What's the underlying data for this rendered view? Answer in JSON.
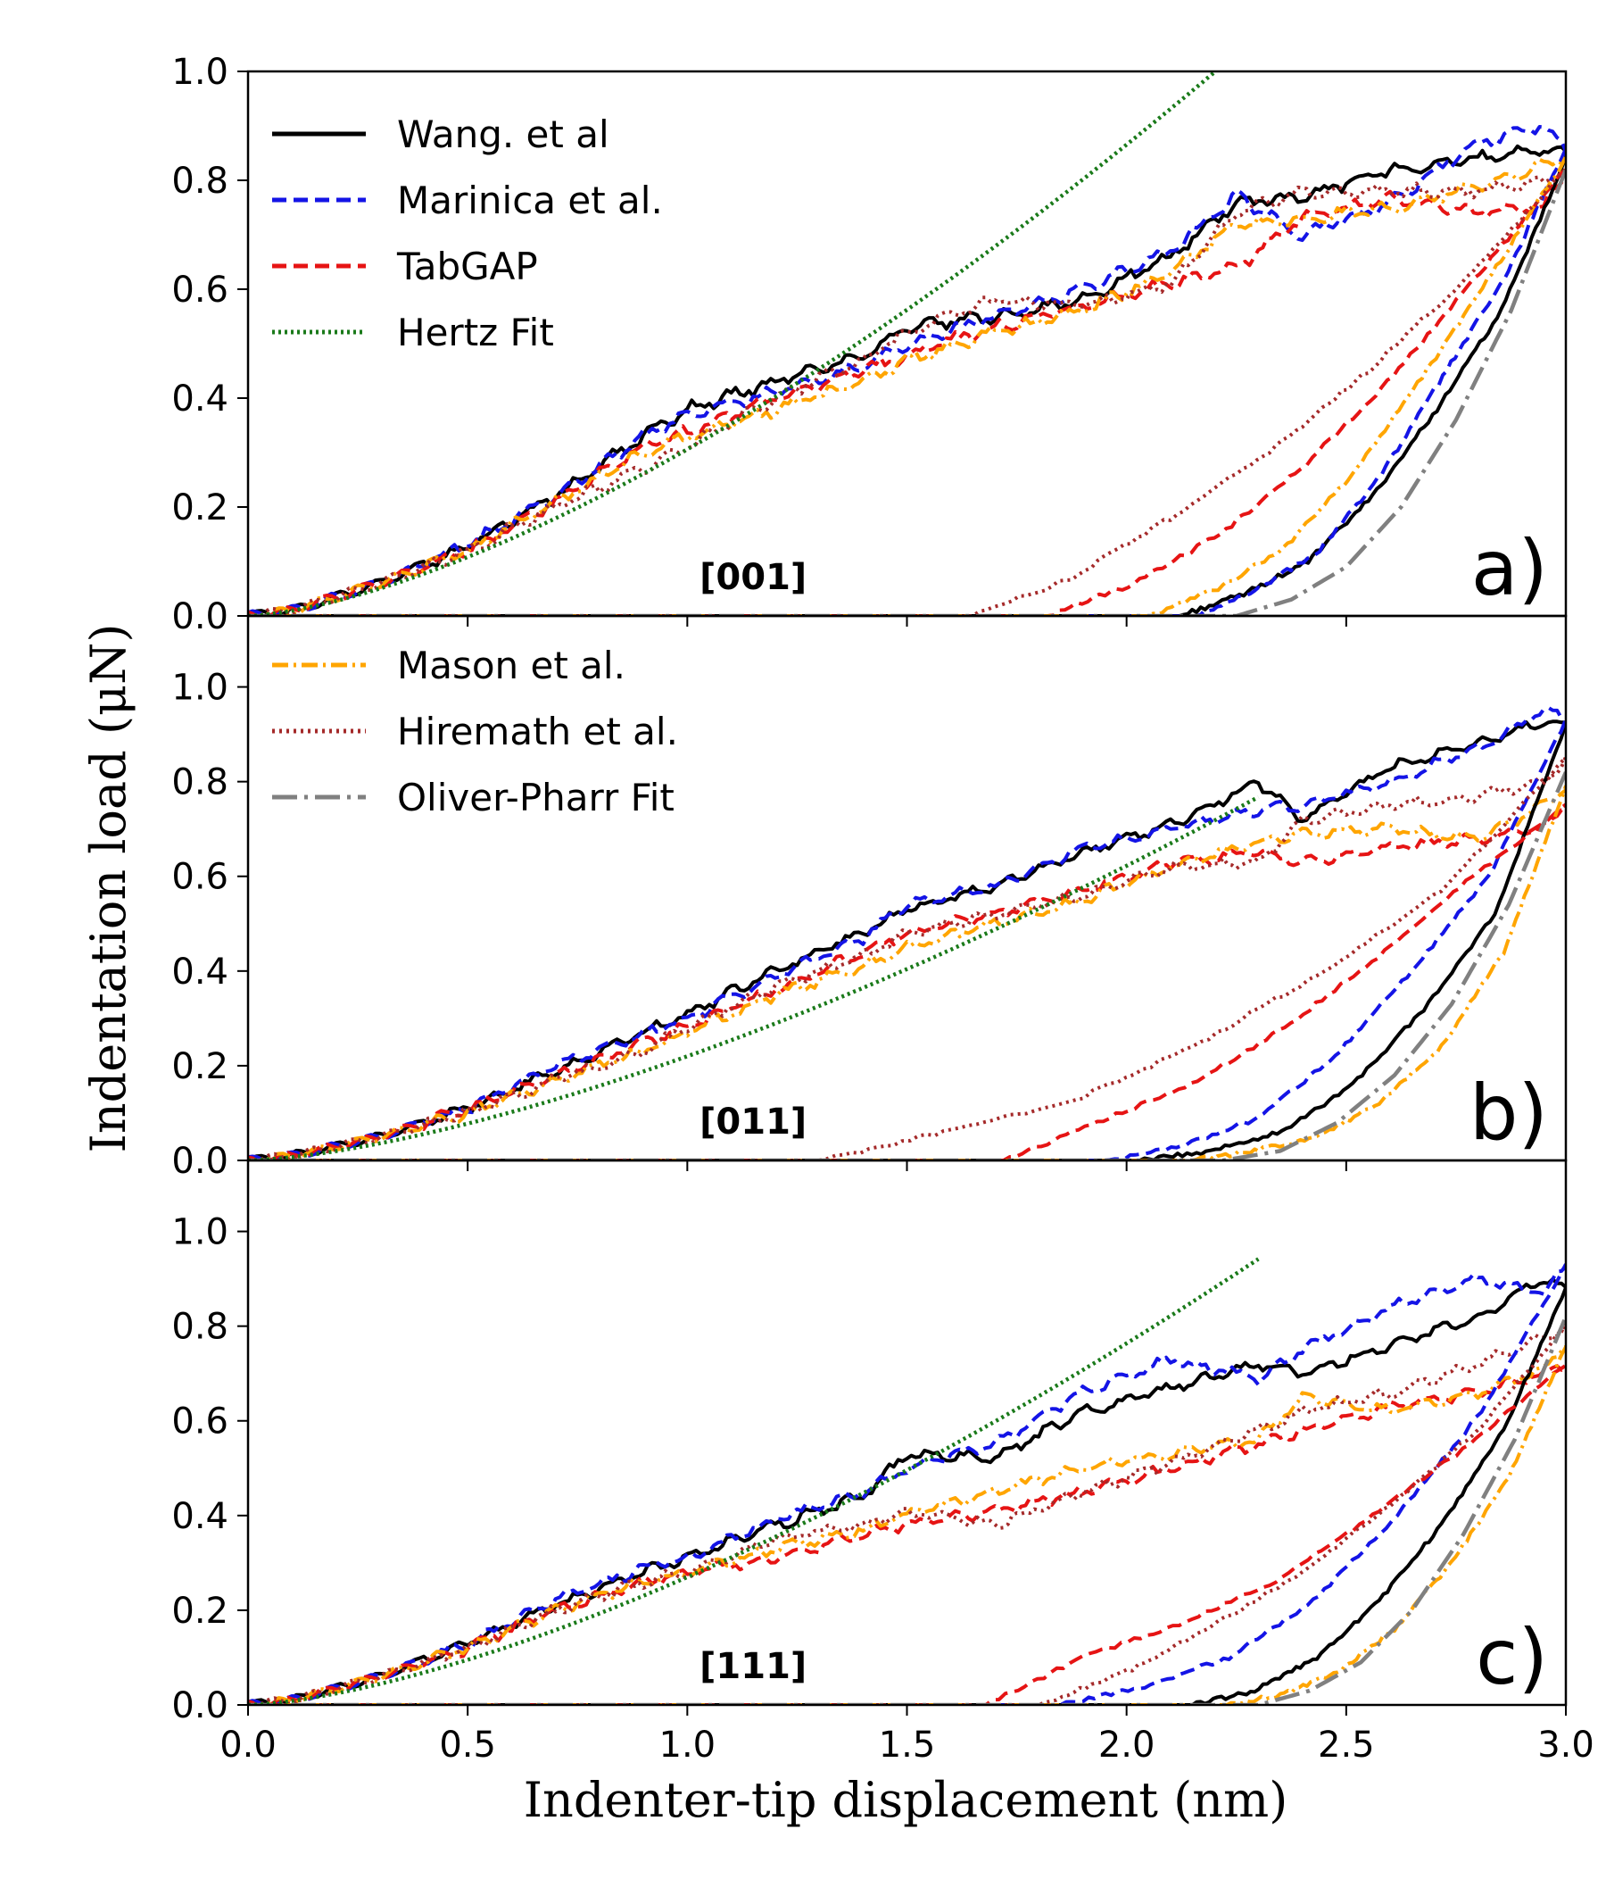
{
  "chart_data": {
    "type": "line",
    "xlabel": "Indenter-tip displacement (nm)",
    "ylabel": "Indentation load (μN)",
    "xlim": [
      0.0,
      3.0
    ],
    "ylim": [
      0.0,
      1.0
    ],
    "ylim_upper_panels": [
      0.0,
      1.15
    ],
    "x_ticks": [
      "0.0",
      "0.5",
      "1.0",
      "1.5",
      "2.0",
      "2.5",
      "3.0"
    ],
    "y_ticks_top": [
      "0.0",
      "0.2",
      "0.4",
      "0.6",
      "0.8",
      "1.0"
    ],
    "y_ticks": [
      "0.0",
      "0.2",
      "0.4",
      "0.6",
      "0.8",
      "1.0"
    ],
    "legends": [
      {
        "panel": "a",
        "placement": "upper-left",
        "entries": [
          {
            "label": "Wang. et al",
            "color": "#000000",
            "style": "solid"
          },
          {
            "label": "Marinica et al.",
            "color": "#1414e6",
            "style": "dashed"
          },
          {
            "label": "TabGAP",
            "color": "#e61414",
            "style": "dashed"
          },
          {
            "label": "Hertz Fit",
            "color": "#1a7a1a",
            "style": "dotted"
          }
        ]
      },
      {
        "panel": "b",
        "placement": "upper-left",
        "entries": [
          {
            "label": "Mason et al.",
            "color": "#ffa500",
            "style": "dashdot"
          },
          {
            "label": "Hiremath et al.",
            "color": "#a52a2a",
            "style": "dotted"
          },
          {
            "label": "Oliver-Pharr Fit",
            "color": "#808080",
            "style": "longdashdot"
          }
        ]
      }
    ],
    "panels": [
      {
        "id": "a",
        "label": "a)",
        "orientation": "[001]",
        "hertz_k": 0.306,
        "loading": {
          "x": [
            0.0,
            0.1,
            0.3,
            0.5,
            0.7,
            0.9,
            1.0,
            1.2,
            1.4,
            1.5,
            1.7,
            1.9,
            2.1,
            2.25,
            2.4,
            2.6,
            2.8,
            2.95,
            3.0
          ],
          "series": [
            {
              "name": "Wang. et al",
              "values": [
                0.0,
                0.01,
                0.06,
                0.13,
                0.22,
                0.33,
                0.38,
                0.43,
                0.48,
                0.53,
                0.55,
                0.58,
                0.66,
                0.76,
                0.77,
                0.82,
                0.84,
                0.86,
                0.85
              ]
            },
            {
              "name": "Marinica et al.",
              "values": [
                0.0,
                0.01,
                0.06,
                0.13,
                0.22,
                0.33,
                0.37,
                0.41,
                0.46,
                0.5,
                0.55,
                0.6,
                0.67,
                0.77,
                0.7,
                0.76,
                0.87,
                0.9,
                0.86
              ]
            },
            {
              "name": "TabGAP",
              "values": [
                0.0,
                0.01,
                0.06,
                0.12,
                0.21,
                0.31,
                0.34,
                0.4,
                0.45,
                0.48,
                0.53,
                0.57,
                0.61,
                0.64,
                0.73,
                0.77,
                0.74,
                0.75,
                0.82
              ]
            },
            {
              "name": "Mason et al.",
              "values": [
                0.0,
                0.01,
                0.06,
                0.12,
                0.21,
                0.3,
                0.33,
                0.38,
                0.43,
                0.47,
                0.52,
                0.56,
                0.63,
                0.72,
                0.73,
                0.75,
                0.79,
                0.83,
                0.84
              ]
            },
            {
              "name": "Hiremath et al.",
              "values": [
                0.0,
                0.01,
                0.06,
                0.12,
                0.2,
                0.27,
                0.31,
                0.4,
                0.47,
                0.52,
                0.58,
                0.57,
                0.61,
                0.74,
                0.78,
                0.78,
                0.78,
                0.8,
                0.82
              ]
            }
          ]
        },
        "unloading": [
          {
            "name": "Wang. et al",
            "x0": 2.12,
            "values": [
              0.0,
              0.04,
              0.1,
              0.22,
              0.38,
              0.56,
              0.84
            ]
          },
          {
            "name": "Marinica et al.",
            "x0": 2.16,
            "values": [
              0.0,
              0.05,
              0.12,
              0.26,
              0.44,
              0.62,
              0.86
            ]
          },
          {
            "name": "TabGAP",
            "x0": 1.82,
            "values": [
              0.0,
              0.06,
              0.15,
              0.28,
              0.44,
              0.63,
              0.82
            ]
          },
          {
            "name": "Mason et al.",
            "x0": 2.05,
            "values": [
              0.0,
              0.05,
              0.13,
              0.27,
              0.45,
              0.64,
              0.84
            ]
          },
          {
            "name": "Hiremath et al.",
            "x0": 1.65,
            "values": [
              0.0,
              0.07,
              0.18,
              0.3,
              0.45,
              0.62,
              0.82
            ]
          },
          {
            "name": "Oliver-Pharr Fit",
            "x0": 2.25,
            "values": [
              0.0,
              0.03,
              0.09,
              0.2,
              0.36,
              0.56,
              0.82
            ]
          }
        ]
      },
      {
        "id": "b",
        "label": "b)",
        "orientation": "[011]",
        "hertz_k": 0.22,
        "loading": {
          "x": [
            0.0,
            0.1,
            0.3,
            0.5,
            0.7,
            0.9,
            1.0,
            1.2,
            1.4,
            1.5,
            1.7,
            1.9,
            2.1,
            2.3,
            2.4,
            2.6,
            2.8,
            2.95,
            3.0
          ],
          "series": [
            {
              "name": "Wang. et al",
              "values": [
                0.0,
                0.01,
                0.05,
                0.11,
                0.19,
                0.27,
                0.31,
                0.4,
                0.48,
                0.53,
                0.58,
                0.65,
                0.71,
                0.8,
                0.72,
                0.83,
                0.88,
                0.93,
                0.92
              ]
            },
            {
              "name": "Marinica et al.",
              "values": [
                0.0,
                0.01,
                0.05,
                0.11,
                0.2,
                0.27,
                0.3,
                0.39,
                0.47,
                0.54,
                0.58,
                0.66,
                0.7,
                0.74,
                0.75,
                0.8,
                0.87,
                0.95,
                0.93
              ]
            },
            {
              "name": "TabGAP",
              "values": [
                0.0,
                0.01,
                0.05,
                0.11,
                0.18,
                0.25,
                0.28,
                0.36,
                0.44,
                0.48,
                0.52,
                0.57,
                0.63,
                0.65,
                0.63,
                0.66,
                0.68,
                0.7,
                0.75
              ]
            },
            {
              "name": "Mason et al.",
              "values": [
                0.0,
                0.01,
                0.05,
                0.1,
                0.17,
                0.23,
                0.27,
                0.35,
                0.41,
                0.45,
                0.5,
                0.55,
                0.62,
                0.67,
                0.69,
                0.7,
                0.68,
                0.75,
                0.79
              ]
            },
            {
              "name": "Hiremath et al.",
              "values": [
                0.0,
                0.01,
                0.05,
                0.1,
                0.17,
                0.23,
                0.28,
                0.37,
                0.43,
                0.48,
                0.52,
                0.56,
                0.62,
                0.63,
                0.72,
                0.75,
                0.77,
                0.8,
                0.85
              ]
            }
          ]
        },
        "unloading": [
          {
            "name": "Wang. et al",
            "x0": 2.03,
            "values": [
              0.0,
              0.02,
              0.06,
              0.16,
              0.32,
              0.52,
              0.92
            ]
          },
          {
            "name": "Marinica et al.",
            "x0": 1.95,
            "values": [
              0.0,
              0.03,
              0.09,
              0.22,
              0.4,
              0.6,
              0.93
            ]
          },
          {
            "name": "TabGAP",
            "x0": 1.72,
            "values": [
              0.0,
              0.08,
              0.16,
              0.28,
              0.43,
              0.6,
              0.75
            ]
          },
          {
            "name": "Mason et al.",
            "x0": 2.15,
            "values": [
              0.0,
              0.02,
              0.05,
              0.12,
              0.24,
              0.44,
              0.79
            ]
          },
          {
            "name": "Hiremath et al.",
            "x0": 1.3,
            "values": [
              0.0,
              0.06,
              0.12,
              0.24,
              0.39,
              0.57,
              0.85
            ]
          },
          {
            "name": "Oliver-Pharr Fit",
            "x0": 2.22,
            "values": [
              0.0,
              0.02,
              0.08,
              0.18,
              0.33,
              0.54,
              0.82
            ]
          }
        ]
      },
      {
        "id": "c",
        "label": "c)",
        "orientation": "[111]",
        "hertz_k": 0.27,
        "loading": {
          "x": [
            0.0,
            0.1,
            0.3,
            0.5,
            0.7,
            0.9,
            1.0,
            1.2,
            1.4,
            1.5,
            1.7,
            1.9,
            2.1,
            2.3,
            2.4,
            2.6,
            2.8,
            2.95,
            3.0
          ],
          "series": [
            {
              "name": "Wang. et al",
              "values": [
                0.0,
                0.01,
                0.06,
                0.13,
                0.21,
                0.28,
                0.31,
                0.38,
                0.44,
                0.53,
                0.52,
                0.62,
                0.67,
                0.72,
                0.7,
                0.76,
                0.82,
                0.9,
                0.88
              ]
            },
            {
              "name": "Marinica et al.",
              "values": [
                0.0,
                0.01,
                0.06,
                0.13,
                0.22,
                0.29,
                0.31,
                0.39,
                0.45,
                0.5,
                0.55,
                0.66,
                0.73,
                0.69,
                0.75,
                0.84,
                0.9,
                0.87,
                0.93
              ]
            },
            {
              "name": "TabGAP",
              "values": [
                0.0,
                0.01,
                0.06,
                0.12,
                0.2,
                0.26,
                0.28,
                0.31,
                0.36,
                0.38,
                0.41,
                0.45,
                0.5,
                0.55,
                0.58,
                0.63,
                0.66,
                0.7,
                0.72
              ]
            },
            {
              "name": "Mason et al.",
              "values": [
                0.0,
                0.01,
                0.06,
                0.12,
                0.2,
                0.26,
                0.28,
                0.33,
                0.37,
                0.4,
                0.45,
                0.5,
                0.53,
                0.56,
                0.65,
                0.62,
                0.66,
                0.71,
                0.76
              ]
            },
            {
              "name": "Hiremath et al.",
              "values": [
                0.0,
                0.01,
                0.06,
                0.12,
                0.2,
                0.26,
                0.28,
                0.35,
                0.38,
                0.41,
                0.38,
                0.45,
                0.51,
                0.58,
                0.62,
                0.66,
                0.72,
                0.78,
                0.8
              ]
            }
          ]
        },
        "unloading": [
          {
            "name": "Wang. et al",
            "x0": 2.15,
            "values": [
              0.0,
              0.03,
              0.1,
              0.22,
              0.38,
              0.58,
              0.88
            ]
          },
          {
            "name": "Marinica et al.",
            "x0": 1.85,
            "values": [
              0.0,
              0.04,
              0.1,
              0.22,
              0.4,
              0.62,
              0.93
            ]
          },
          {
            "name": "TabGAP",
            "x0": 1.68,
            "values": [
              0.0,
              0.1,
              0.17,
              0.26,
              0.4,
              0.55,
              0.72
            ]
          },
          {
            "name": "Mason et al.",
            "x0": 2.22,
            "values": [
              0.0,
              0.02,
              0.07,
              0.16,
              0.3,
              0.48,
              0.76
            ]
          },
          {
            "name": "Hiremath et al.",
            "x0": 1.8,
            "values": [
              0.0,
              0.07,
              0.17,
              0.28,
              0.42,
              0.58,
              0.8
            ]
          },
          {
            "name": "Oliver-Pharr Fit",
            "x0": 2.3,
            "values": [
              0.0,
              0.03,
              0.09,
              0.2,
              0.36,
              0.56,
              0.82
            ]
          }
        ]
      }
    ]
  },
  "series_styles": {
    "Wang. et al": {
      "color": "#000000",
      "dash": ""
    },
    "Marinica et al.": {
      "color": "#1414e6",
      "dash": "16,8"
    },
    "TabGAP": {
      "color": "#e61414",
      "dash": "16,8"
    },
    "Mason et al.": {
      "color": "#ffa500",
      "dash": "18,6,3,6"
    },
    "Hiremath et al.": {
      "color": "#a52a2a",
      "dash": "3,5"
    },
    "Hertz Fit": {
      "color": "#1a7a1a",
      "dash": "3,4"
    },
    "Oliver-Pharr Fit": {
      "color": "#808080",
      "dash": "28,8,4,8"
    }
  }
}
